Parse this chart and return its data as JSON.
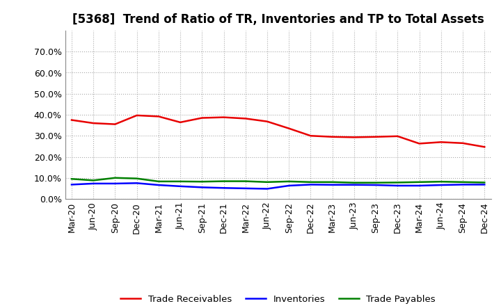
{
  "title": "[5368]  Trend of Ratio of TR, Inventories and TP to Total Assets",
  "x_labels": [
    "Mar-20",
    "Jun-20",
    "Sep-20",
    "Dec-20",
    "Mar-21",
    "Jun-21",
    "Sep-21",
    "Dec-21",
    "Mar-22",
    "Jun-22",
    "Sep-22",
    "Dec-22",
    "Mar-23",
    "Jun-23",
    "Sep-23",
    "Dec-23",
    "Mar-24",
    "Jun-24",
    "Sep-24",
    "Dec-24"
  ],
  "trade_receivables": [
    0.375,
    0.36,
    0.355,
    0.397,
    0.392,
    0.364,
    0.385,
    0.388,
    0.382,
    0.368,
    0.335,
    0.3,
    0.295,
    0.293,
    0.295,
    0.298,
    0.263,
    0.27,
    0.265,
    0.247
  ],
  "inventories": [
    0.068,
    0.073,
    0.073,
    0.075,
    0.066,
    0.06,
    0.055,
    0.052,
    0.05,
    0.048,
    0.063,
    0.068,
    0.067,
    0.067,
    0.066,
    0.063,
    0.063,
    0.066,
    0.068,
    0.068
  ],
  "trade_payables": [
    0.095,
    0.088,
    0.1,
    0.097,
    0.083,
    0.083,
    0.082,
    0.084,
    0.084,
    0.08,
    0.083,
    0.08,
    0.08,
    0.077,
    0.077,
    0.078,
    0.08,
    0.082,
    0.08,
    0.078
  ],
  "tr_color": "#e80000",
  "inv_color": "#0000ff",
  "tp_color": "#008000",
  "bg_color": "#ffffff",
  "grid_color": "#aaaaaa",
  "ylim": [
    0.0,
    0.8
  ],
  "yticks": [
    0.0,
    0.1,
    0.2,
    0.3,
    0.4,
    0.5,
    0.6,
    0.7
  ],
  "legend_labels": [
    "Trade Receivables",
    "Inventories",
    "Trade Payables"
  ],
  "title_fontsize": 12,
  "tick_fontsize": 9
}
